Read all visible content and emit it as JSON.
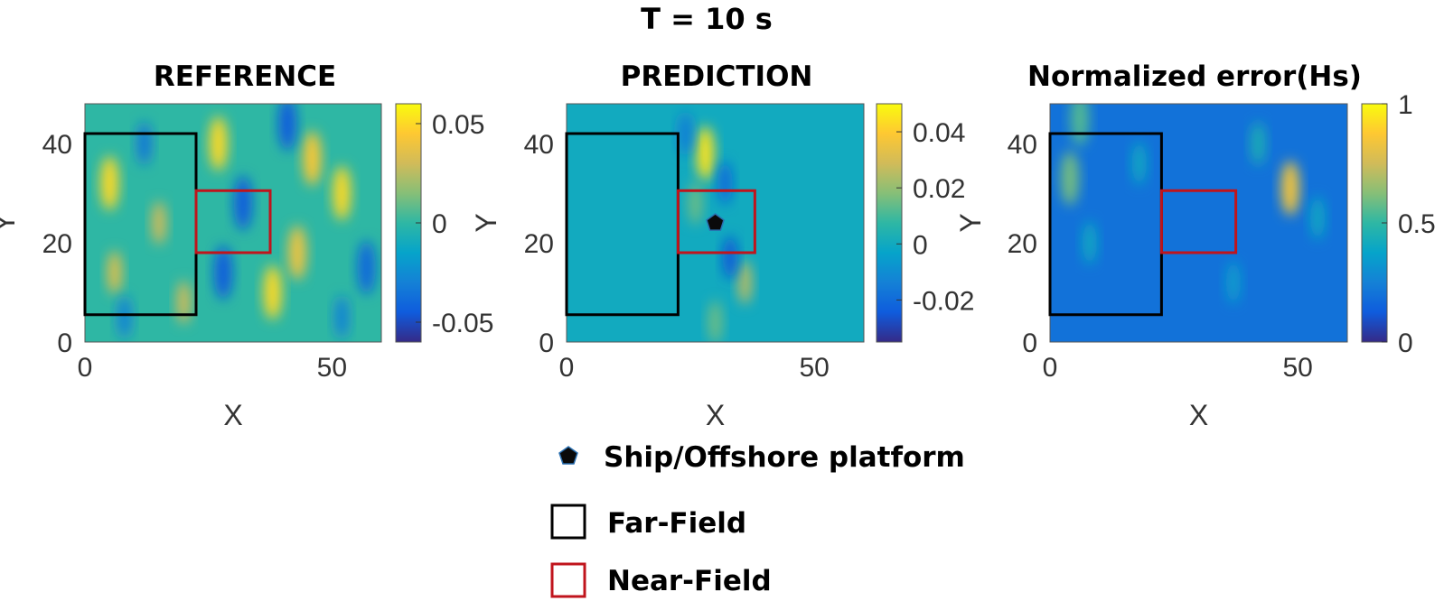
{
  "suptitle": "T = 10 s",
  "colors": {
    "far_field": "#000000",
    "near_field": "#c0141c",
    "parula": [
      "#352a87",
      "#0f5cdd",
      "#1481d6",
      "#06a4ca",
      "#2eb7a4",
      "#87bf77",
      "#d1bb59",
      "#fec832",
      "#f9fb0e"
    ]
  },
  "legend": {
    "items": [
      {
        "icon": "pentagon-marker-icon",
        "label": "Ship/Offshore platform"
      },
      {
        "icon": "black-square-icon",
        "label": "Far-Field"
      },
      {
        "icon": "red-square-icon",
        "label": "Near-Field"
      }
    ]
  },
  "chart_data": [
    {
      "type": "heatmap",
      "title": "REFERENCE",
      "xlabel": "X",
      "ylabel": "Y",
      "xlim": [
        0,
        60
      ],
      "ylim": [
        0,
        48
      ],
      "xticks": [
        0,
        50
      ],
      "yticks": [
        0,
        20,
        40
      ],
      "colorbar": {
        "clim": [
          -0.06,
          0.06
        ],
        "ticks": [
          -0.05,
          0,
          0.05
        ],
        "tick_labels": [
          "-0.05",
          "0",
          "0.05"
        ]
      },
      "regions": [
        {
          "name": "Far-Field",
          "x": [
            0,
            22.5
          ],
          "y": [
            5.5,
            42
          ]
        },
        {
          "name": "Near-Field",
          "x": [
            22.5,
            37.5
          ],
          "y": [
            18,
            30.5
          ]
        }
      ],
      "field_mean": 0.0,
      "features": [
        {
          "x": 5,
          "y": 32,
          "value": 0.05
        },
        {
          "x": 6,
          "y": 14,
          "value": 0.035
        },
        {
          "x": 27,
          "y": 40,
          "value": 0.05
        },
        {
          "x": 15,
          "y": 24,
          "value": 0.03
        },
        {
          "x": 46,
          "y": 37,
          "value": 0.045
        },
        {
          "x": 52,
          "y": 30,
          "value": 0.05
        },
        {
          "x": 38,
          "y": 10,
          "value": 0.05
        },
        {
          "x": 43,
          "y": 18,
          "value": 0.04
        },
        {
          "x": 20,
          "y": 8,
          "value": 0.03
        },
        {
          "x": 32,
          "y": 28,
          "value": -0.045
        },
        {
          "x": 57,
          "y": 15,
          "value": -0.04
        },
        {
          "x": 12,
          "y": 40,
          "value": -0.035
        },
        {
          "x": 41,
          "y": 44,
          "value": -0.045
        },
        {
          "x": 8,
          "y": 5,
          "value": -0.03
        },
        {
          "x": 28,
          "y": 14,
          "value": -0.045
        },
        {
          "x": 52,
          "y": 5,
          "value": -0.03
        }
      ]
    },
    {
      "type": "heatmap",
      "title": "PREDICTION",
      "xlabel": "X",
      "ylabel": "Y",
      "xlim": [
        0,
        60
      ],
      "ylim": [
        0,
        48
      ],
      "xticks": [
        0,
        50
      ],
      "yticks": [
        0,
        20,
        40
      ],
      "colorbar": {
        "clim": [
          -0.035,
          0.05
        ],
        "ticks": [
          -0.02,
          0,
          0.02,
          0.04
        ],
        "tick_labels": [
          "-0.02",
          "0",
          "0.02",
          "0.04"
        ]
      },
      "regions": [
        {
          "name": "Far-Field",
          "x": [
            0,
            22.5
          ],
          "y": [
            5.5,
            42
          ]
        },
        {
          "name": "Near-Field",
          "x": [
            22.5,
            38
          ],
          "y": [
            18,
            30.5
          ]
        }
      ],
      "marker": {
        "name": "Ship/Offshore platform",
        "x": 30,
        "y": 24
      },
      "field_mean": 0.0,
      "features": [
        {
          "x": 28,
          "y": 38,
          "value": 0.045
        },
        {
          "x": 36,
          "y": 12,
          "value": 0.025
        },
        {
          "x": 26,
          "y": 28,
          "value": 0.015
        },
        {
          "x": 32,
          "y": 32,
          "value": -0.02
        },
        {
          "x": 33,
          "y": 17,
          "value": -0.025
        },
        {
          "x": 24,
          "y": 42,
          "value": -0.015
        },
        {
          "x": 30,
          "y": 4,
          "value": 0.015
        }
      ]
    },
    {
      "type": "heatmap",
      "title": "Normalized error(Hs)",
      "xlabel": "X",
      "ylabel": "Y",
      "xlim": [
        0,
        60
      ],
      "ylim": [
        0,
        48
      ],
      "xticks": [
        0,
        50
      ],
      "yticks": [
        0,
        20,
        40
      ],
      "colorbar": {
        "clim": [
          0,
          1
        ],
        "ticks": [
          0,
          0.5,
          1
        ],
        "tick_labels": [
          "0",
          "0.5",
          "1"
        ]
      },
      "regions": [
        {
          "name": "Far-Field",
          "x": [
            0,
            22.5
          ],
          "y": [
            5.5,
            42
          ]
        },
        {
          "name": "Near-Field",
          "x": [
            22.5,
            37.5
          ],
          "y": [
            18,
            30.5
          ]
        }
      ],
      "field_mean": 0.2,
      "features": [
        {
          "x": 48.5,
          "y": 31,
          "value": 0.85
        },
        {
          "x": 4,
          "y": 33,
          "value": 0.6
        },
        {
          "x": 8,
          "y": 20,
          "value": 0.4
        },
        {
          "x": 42,
          "y": 40,
          "value": 0.45
        },
        {
          "x": 54,
          "y": 25,
          "value": 0.4
        },
        {
          "x": 18,
          "y": 36,
          "value": 0.4
        },
        {
          "x": 37,
          "y": 12,
          "value": 0.35
        },
        {
          "x": 6,
          "y": 45,
          "value": 0.55
        }
      ]
    }
  ]
}
